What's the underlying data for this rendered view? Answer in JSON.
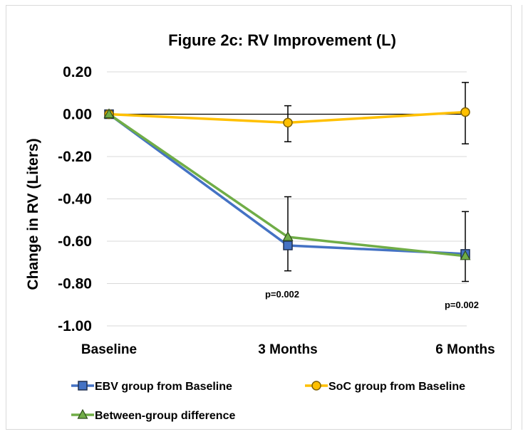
{
  "chart_data": {
    "type": "line",
    "title": "Figure 2c: RV Improvement (L)",
    "xlabel": "",
    "ylabel": "Change in RV (Liters)",
    "categories": [
      "Baseline",
      "3 Months",
      "6 Months"
    ],
    "ylim": [
      -1.0,
      0.2
    ],
    "yticks": [
      "0.20",
      "0.00",
      "-0.20",
      "-0.40",
      "-0.60",
      "-0.80",
      "-1.00"
    ],
    "grid": true,
    "legend_position": "bottom",
    "series": [
      {
        "name": "EBV group from Baseline",
        "color": "#4472c4",
        "marker": "square",
        "marker_fill": "#4472c4",
        "marker_edge": "#1f2f4f",
        "values": [
          0.0,
          -0.62,
          -0.66
        ],
        "error_low": [
          null,
          -0.74,
          -0.79
        ],
        "error_high": [
          null,
          -0.39,
          -0.46
        ]
      },
      {
        "name": "SoC group from Baseline",
        "color": "#ffc000",
        "marker": "circle",
        "marker_fill": "#ffc000",
        "marker_edge": "#7f6000",
        "values": [
          0.0,
          -0.04,
          0.01
        ],
        "error_low": [
          null,
          -0.13,
          -0.14
        ],
        "error_high": [
          null,
          0.04,
          0.15
        ]
      },
      {
        "name": "Between-group difference",
        "color": "#70ad47",
        "marker": "triangle",
        "marker_fill": "#70ad47",
        "marker_edge": "#2e4d1c",
        "values": [
          0.0,
          -0.58,
          -0.67
        ]
      }
    ],
    "annotations": [
      {
        "text": "p=0.002",
        "category": "3 Months"
      },
      {
        "text": "p=0.002",
        "category": "6 Months"
      }
    ]
  }
}
